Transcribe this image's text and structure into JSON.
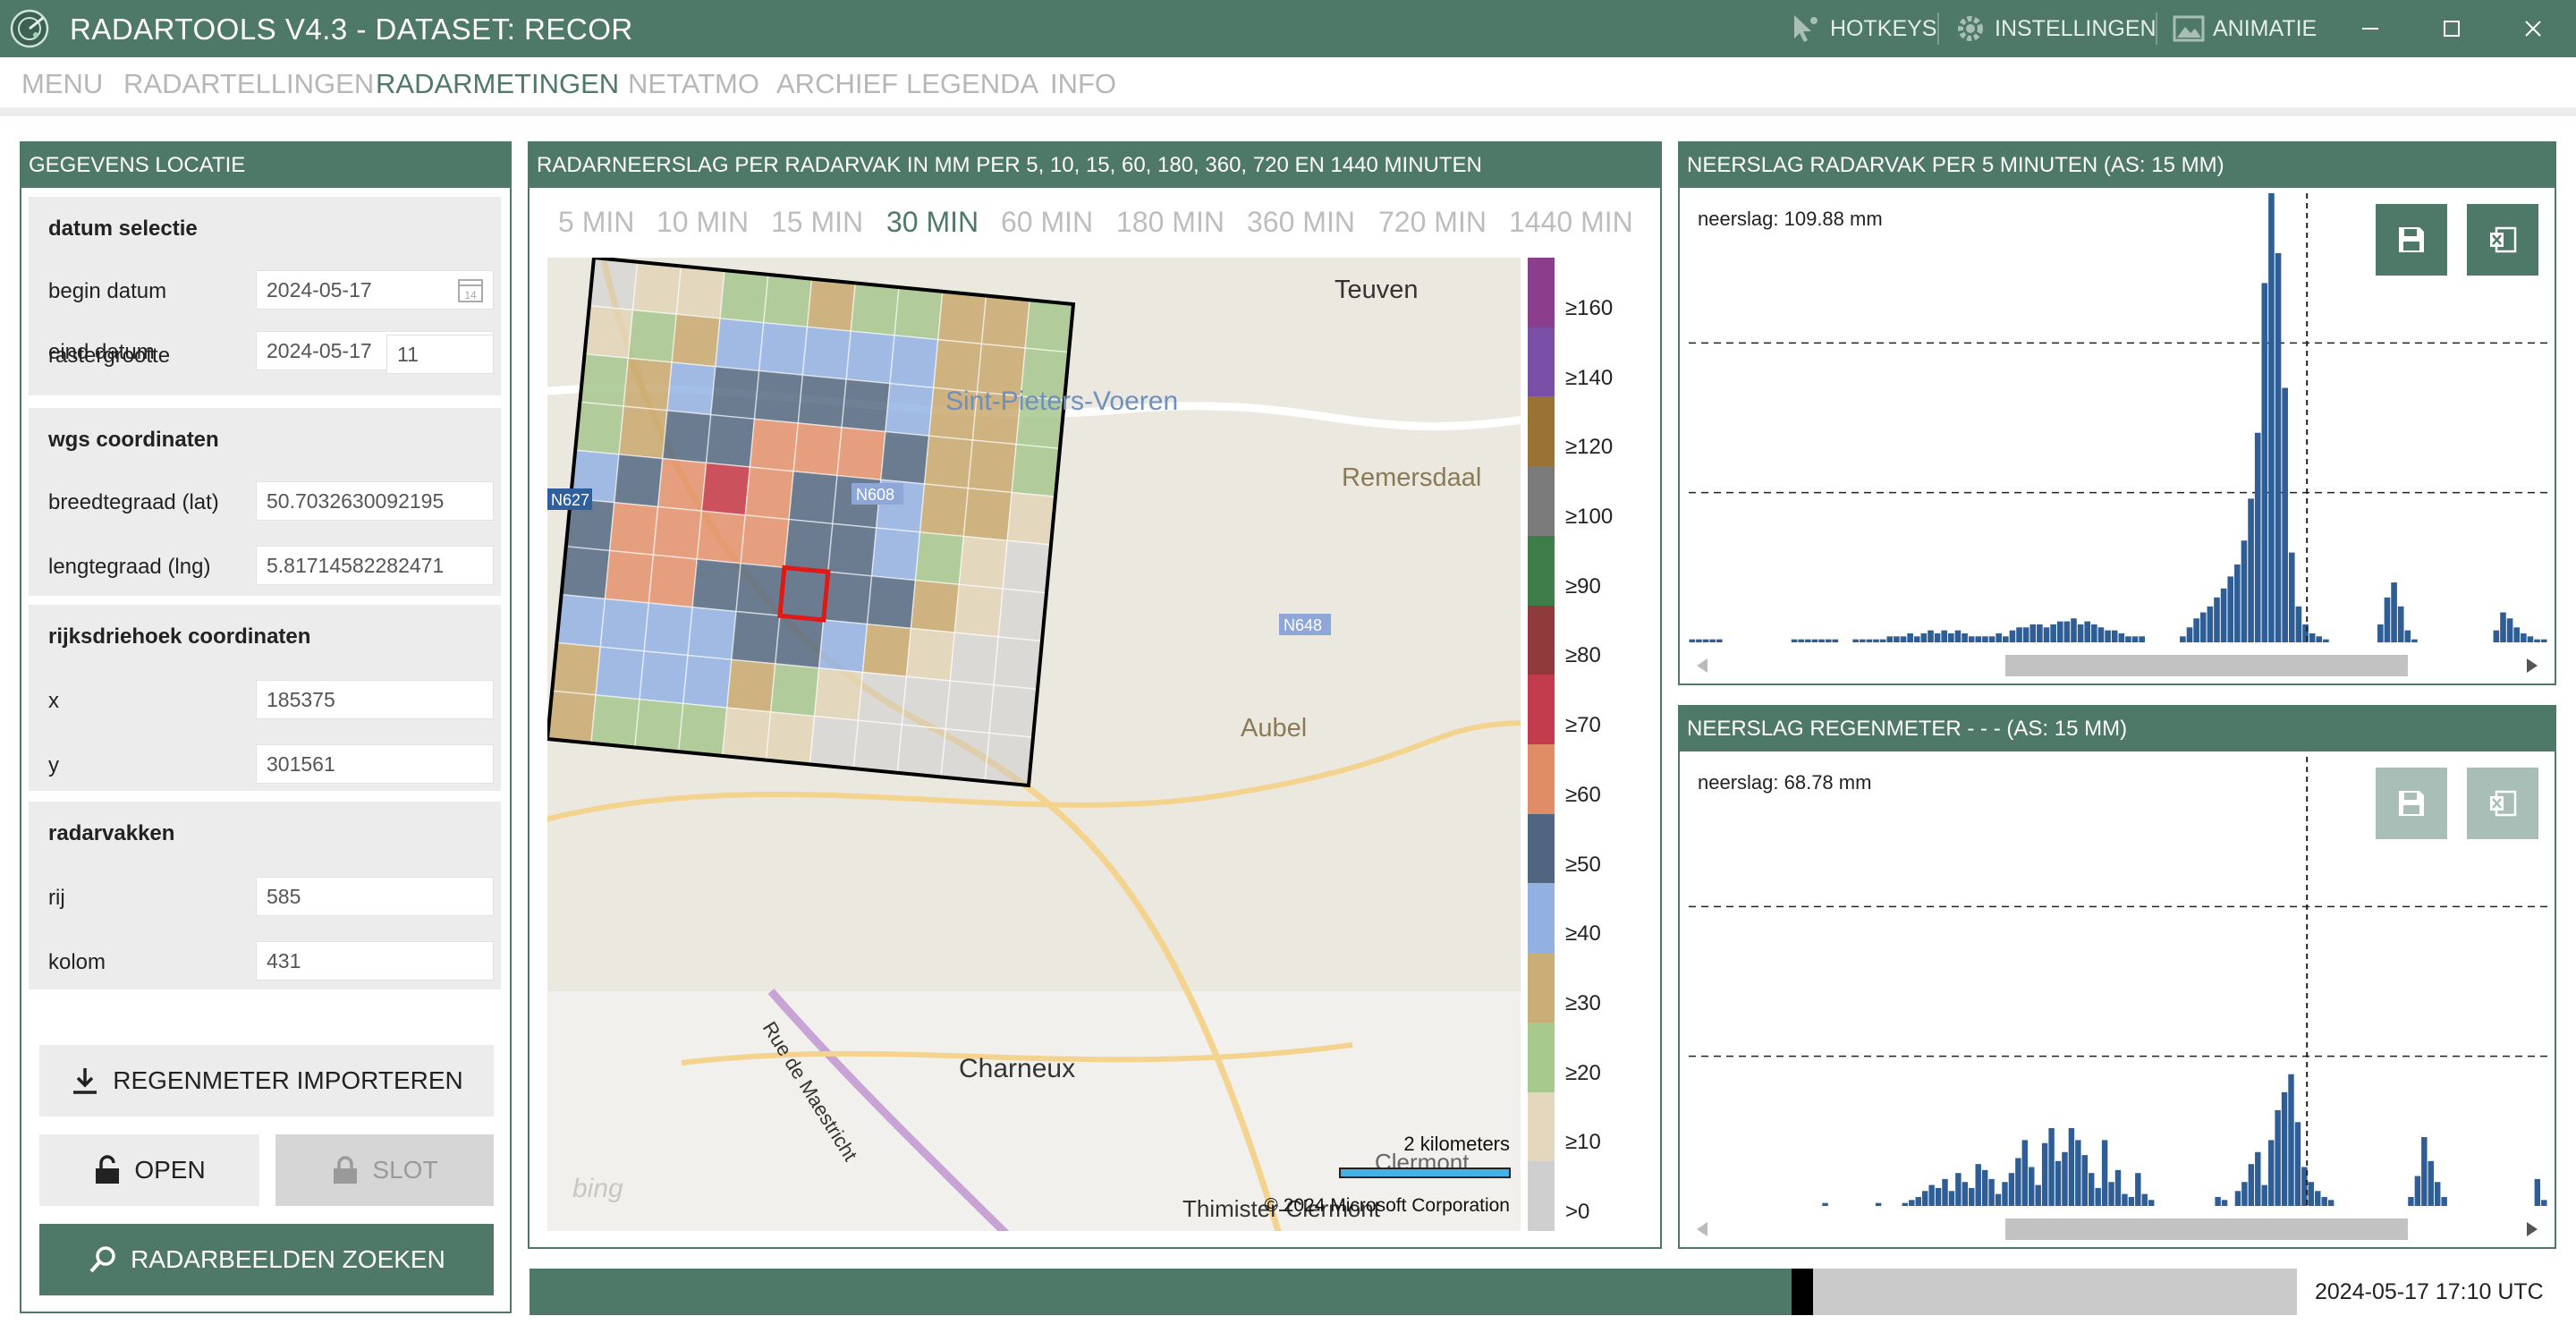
{
  "window": {
    "title": "RADARTOOLS V4.3 - DATASET: RECOR",
    "hotkeys": "HOTKEYS",
    "settings": "INSTELLINGEN",
    "animation": "ANIMATIE"
  },
  "menu": {
    "items": [
      "MENU",
      "RADARTELLINGEN",
      "RADARMETINGEN",
      "NETATMO",
      "ARCHIEF",
      "LEGENDA",
      "INFO"
    ],
    "active": "RADARMETINGEN"
  },
  "location": {
    "header": "GEGEVENS LOCATIE",
    "date_selection": {
      "title": "datum selectie",
      "begin_label": "begin datum",
      "begin_value": "2024-05-17",
      "end_label": "eind datum",
      "end_value": "2024-05-17",
      "grid_label": "rastergrootte",
      "grid_value": "11"
    },
    "wgs": {
      "title": "wgs coordinaten",
      "lat_label": "breedtegraad (lat)",
      "lat_value": "50.7032630092195",
      "lng_label": "lengtegraad (lng)",
      "lng_value": "5.81714582282471"
    },
    "rd": {
      "title": "rijksdriehoek coordinaten",
      "x_label": "x",
      "x_value": "185375",
      "y_label": "y",
      "y_value": "301561"
    },
    "cells": {
      "title": "radarvakken",
      "row_label": "rij",
      "row_value": "585",
      "col_label": "kolom",
      "col_value": "431"
    },
    "import_button": "REGENMETER IMPORTEREN",
    "open_button": "OPEN",
    "lock_button": "SLOT",
    "search_button": "RADARBEELDEN ZOEKEN"
  },
  "radar": {
    "header": "RADARNEERSLAG PER RADARVAK IN MM PER 5, 10, 15, 60, 180, 360, 720 EN 1440 MINUTEN",
    "tabs": [
      "5 MIN",
      "10 MIN",
      "15 MIN",
      "30 MIN",
      "60 MIN",
      "180 MIN",
      "360 MIN",
      "720 MIN",
      "1440 MIN"
    ],
    "active_tab": "30 MIN",
    "map_labels": [
      "Teuven",
      "Sint-Pieters-Voeren",
      "Remersdaal",
      "Aubel",
      "Charneux",
      "Rue de Maestricht",
      "Clermont",
      "Thimister-Clermont",
      "N627",
      "N608",
      "N648"
    ],
    "scale_label": "2 kilometers",
    "copyright": "© 2024 Microsoft Corporation",
    "provider": "bing",
    "legend": [
      {
        "label": "≥160",
        "color": "#8a3e8c"
      },
      {
        "label": "≥140",
        "color": "#7a4fa8"
      },
      {
        "label": "≥120",
        "color": "#9a7234"
      },
      {
        "label": "≥100",
        "color": "#7b7b7b"
      },
      {
        "label": "≥90",
        "color": "#3c7d4a"
      },
      {
        "label": "≥80",
        "color": "#8f3b3b"
      },
      {
        "label": "≥70",
        "color": "#c33c4e"
      },
      {
        "label": "≥60",
        "color": "#e08d67"
      },
      {
        "label": "≥50",
        "color": "#50657f"
      },
      {
        "label": "≥40",
        "color": "#92b0e2"
      },
      {
        "label": "≥30",
        "color": "#c9ae77"
      },
      {
        "label": "≥20",
        "color": "#a8c98e"
      },
      {
        "label": "≥10",
        "color": "#e3d7bd"
      },
      {
        "label": ">0",
        "color": "#cfcfcf"
      }
    ],
    "grid": [
      "CTTGGBGGBBG",
      "TGBLLLLLBBG",
      "GBLNNNNLBBG",
      "GBNNOOONBBG",
      "LNORONNLBBT",
      "NOOOONNLGTC",
      "NOONNSNNBTC",
      "LLLLNNLBTCC",
      "BLLLBGTCCCC",
      "BGGGTTCCCCC"
    ]
  },
  "chart_radar": {
    "header": "NEERSLAG RADARVAK PER 5 MINUTEN (AS: 15 MM)",
    "readout": "neerslag: 109.88 mm"
  },
  "chart_gauge": {
    "header": "NEERSLAG REGENMETER -  -  -  (AS: 15 MM)",
    "readout": "neerslag: 68.78 mm"
  },
  "chart_data": [
    {
      "type": "bar",
      "title": "NEERSLAG RADARVAK PER 5 MINUTEN (AS: 15 MM)",
      "ylim": [
        0,
        15
      ],
      "ygrid": [
        5,
        10
      ],
      "values": [
        0.1,
        0.1,
        0.1,
        0.1,
        0.1,
        0,
        0,
        0,
        0,
        0,
        0,
        0,
        0,
        0,
        0,
        0.1,
        0.1,
        0.1,
        0.1,
        0.1,
        0.1,
        0.1,
        0,
        0,
        0.1,
        0.1,
        0.1,
        0.1,
        0.1,
        0.2,
        0.2,
        0.2,
        0.3,
        0.2,
        0.3,
        0.4,
        0.3,
        0.4,
        0.3,
        0.4,
        0.3,
        0.2,
        0.2,
        0.2,
        0.2,
        0.3,
        0.2,
        0.4,
        0.5,
        0.5,
        0.6,
        0.6,
        0.5,
        0.6,
        0.7,
        0.7,
        0.8,
        0.6,
        0.7,
        0.6,
        0.5,
        0.4,
        0.4,
        0.3,
        0.2,
        0.2,
        0.2,
        0,
        0,
        0,
        0,
        0,
        0.2,
        0.5,
        0.8,
        1.0,
        1.2,
        1.5,
        1.8,
        2.2,
        2.6,
        3.4,
        4.8,
        7.0,
        12.0,
        15.0,
        13.0,
        8.5,
        3.0,
        1.2,
        0.6,
        0.3,
        0.2,
        0.1,
        0,
        0,
        0,
        0,
        0,
        0,
        0,
        0.6,
        1.5,
        2.0,
        1.2,
        0.4,
        0.1,
        0,
        0,
        0,
        0,
        0,
        0,
        0,
        0,
        0,
        0,
        0,
        0.4,
        1.0,
        0.8,
        0.5,
        0.3,
        0.2,
        0.1,
        0.1
      ]
    },
    {
      "type": "bar",
      "title": "NEERSLAG REGENMETER -  -  -  (AS: 15 MM)",
      "ylim": [
        0,
        15
      ],
      "ygrid": [
        5,
        10
      ],
      "values": [
        0,
        0,
        0,
        0,
        0,
        0,
        0,
        0,
        0,
        0,
        0,
        0,
        0,
        0,
        0,
        0,
        0,
        0,
        0,
        0,
        0.1,
        0,
        0,
        0,
        0,
        0,
        0,
        0,
        0.1,
        0,
        0,
        0,
        0.1,
        0.2,
        0.3,
        0.5,
        0.7,
        0.6,
        0.9,
        0.5,
        1.1,
        0.8,
        0.6,
        1.4,
        1.2,
        0.9,
        0.4,
        0.8,
        1.1,
        1.6,
        2.2,
        1.3,
        0.7,
        2.1,
        2.6,
        1.5,
        1.8,
        2.6,
        2.2,
        1.7,
        1.1,
        0.6,
        2.2,
        0.8,
        1.2,
        0.4,
        0.3,
        1.1,
        0.4,
        0.2,
        0,
        0,
        0,
        0,
        0,
        0,
        0,
        0,
        0,
        0.3,
        0.2,
        0,
        0.5,
        0.8,
        1.4,
        1.8,
        0.7,
        2.2,
        3.2,
        3.8,
        4.4,
        2.8,
        1.3,
        0.8,
        0.5,
        0.3,
        0.2,
        0,
        0,
        0,
        0,
        0,
        0,
        0,
        0,
        0,
        0,
        0,
        0.3,
        1.0,
        2.3,
        1.5,
        0.8,
        0.3,
        0,
        0,
        0,
        0,
        0,
        0,
        0,
        0,
        0,
        0,
        0,
        0,
        0,
        0.9,
        0.2
      ]
    }
  ],
  "footer": {
    "progress": 0.72,
    "timestamp": "2024-05-17 17:10 UTC"
  }
}
